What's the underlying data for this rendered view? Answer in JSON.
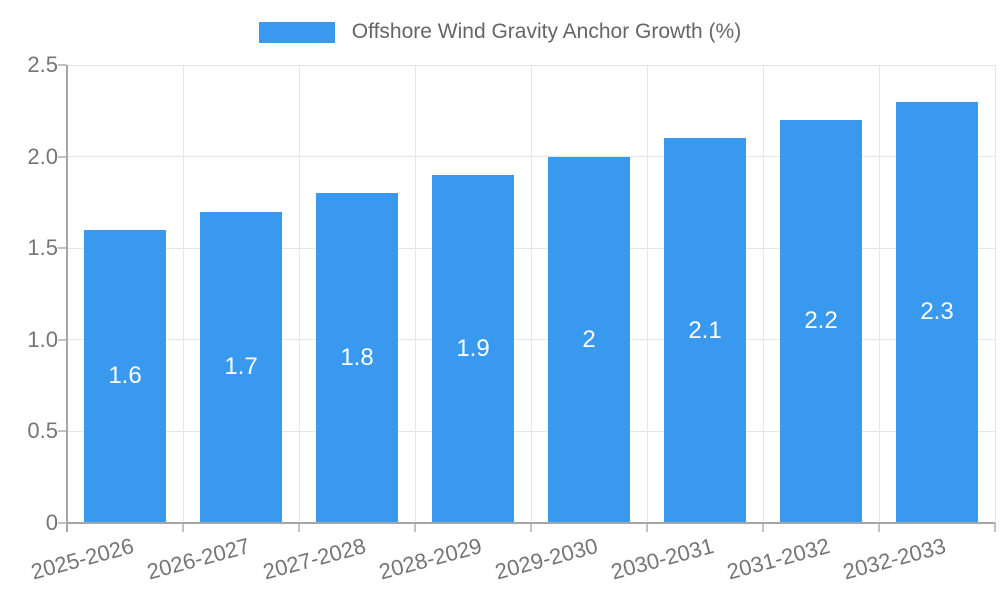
{
  "chart_data": {
    "type": "bar",
    "title": "Offshore Wind Gravity Anchor Growth (%)",
    "categories": [
      "2025-2026",
      "2026-2027",
      "2027-2028",
      "2028-2029",
      "2029-2030",
      "2030-2031",
      "2031-2032",
      "2032-2033"
    ],
    "values": [
      1.6,
      1.7,
      1.8,
      1.9,
      2,
      2.1,
      2.2,
      2.3
    ],
    "bar_labels": [
      "1.6",
      "1.7",
      "1.8",
      "1.9",
      "2",
      "2.1",
      "2.2",
      "2.3"
    ],
    "xlabel": "",
    "ylabel": "",
    "ylim": [
      0,
      2.5
    ],
    "yticks": [
      {
        "value": 0,
        "label": "0"
      },
      {
        "value": 0.5,
        "label": "0.5"
      },
      {
        "value": 1,
        "label": "1.0"
      },
      {
        "value": 1.5,
        "label": "1.5"
      },
      {
        "value": 2,
        "label": "2.0"
      },
      {
        "value": 2.5,
        "label": "2.5"
      }
    ],
    "grid": true,
    "legend_position": "top",
    "colors": {
      "bar": "#3999ee",
      "grid_line": "#e6e6e6",
      "axis_line": "#a6a6a6",
      "tick_mark": "#c2c2c2",
      "tick_text": "#757575",
      "legend_text": "#666666",
      "bar_label_text": "#ffffff",
      "background": "#ffffff"
    }
  }
}
